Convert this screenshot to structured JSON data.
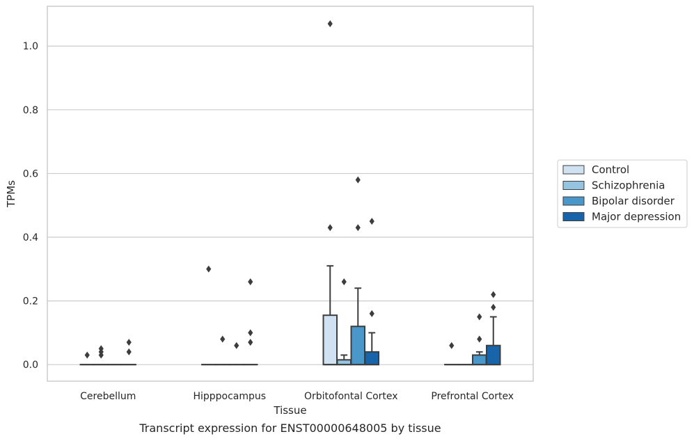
{
  "chart_data": {
    "type": "boxplot",
    "xlabel": "Tissue",
    "ylabel": "TPMs",
    "ylim": [
      -0.052,
      1.125
    ],
    "yticks": [
      0.0,
      0.2,
      0.4,
      0.6,
      0.8,
      1.0
    ],
    "grid": true,
    "legend_position": "right",
    "categories": [
      "Cerebellum",
      "Hipppocampus",
      "Orbitofontal Cortex",
      "Prefrontal Cortex"
    ],
    "series": [
      {
        "name": "Control",
        "color": "#d0e1f2",
        "boxes": [
          {
            "q1": 0,
            "median": 0,
            "q3": 0,
            "whisker_low": 0,
            "whisker_high": 0,
            "outliers": [
              0.03
            ]
          },
          {
            "q1": 0,
            "median": 0,
            "q3": 0,
            "whisker_low": 0,
            "whisker_high": 0,
            "outliers": [
              0.3
            ]
          },
          {
            "q1": 0,
            "median": 0,
            "q3": 0.155,
            "whisker_low": 0,
            "whisker_high": 0.31,
            "outliers": [
              0.43,
              1.07
            ]
          },
          {
            "q1": 0,
            "median": 0,
            "q3": 0,
            "whisker_low": 0,
            "whisker_high": 0,
            "outliers": [
              0.06
            ]
          }
        ]
      },
      {
        "name": "Schizophrenia",
        "color": "#94c4df",
        "boxes": [
          {
            "q1": 0,
            "median": 0,
            "q3": 0,
            "whisker_low": 0,
            "whisker_high": 0,
            "outliers": [
              0.03,
              0.04,
              0.05
            ]
          },
          {
            "q1": 0,
            "median": 0,
            "q3": 0,
            "whisker_low": 0,
            "whisker_high": 0,
            "outliers": [
              0.08
            ]
          },
          {
            "q1": 0,
            "median": 0,
            "q3": 0.015,
            "whisker_low": 0,
            "whisker_high": 0.03,
            "outliers": [
              0.26
            ]
          },
          {
            "q1": 0,
            "median": 0,
            "q3": 0,
            "whisker_low": 0,
            "whisker_high": 0,
            "outliers": []
          }
        ]
      },
      {
        "name": "Bipolar disorder",
        "color": "#4a98c9",
        "boxes": [
          {
            "q1": 0,
            "median": 0,
            "q3": 0,
            "whisker_low": 0,
            "whisker_high": 0,
            "outliers": []
          },
          {
            "q1": 0,
            "median": 0,
            "q3": 0,
            "whisker_low": 0,
            "whisker_high": 0,
            "outliers": [
              0.06
            ]
          },
          {
            "q1": 0,
            "median": 0,
            "q3": 0.12,
            "whisker_low": 0,
            "whisker_high": 0.24,
            "outliers": [
              0.43,
              0.58
            ]
          },
          {
            "q1": 0,
            "median": 0,
            "q3": 0.03,
            "whisker_low": 0,
            "whisker_high": 0.04,
            "outliers": [
              0.08,
              0.15
            ]
          }
        ]
      },
      {
        "name": "Major depression",
        "color": "#1764ab",
        "boxes": [
          {
            "q1": 0,
            "median": 0,
            "q3": 0,
            "whisker_low": 0,
            "whisker_high": 0,
            "outliers": [
              0.04,
              0.07
            ]
          },
          {
            "q1": 0,
            "median": 0,
            "q3": 0,
            "whisker_low": 0,
            "whisker_high": 0,
            "outliers": [
              0.07,
              0.1,
              0.26
            ]
          },
          {
            "q1": 0,
            "median": 0,
            "q3": 0.04,
            "whisker_low": 0,
            "whisker_high": 0.1,
            "outliers": [
              0.16,
              0.45
            ]
          },
          {
            "q1": 0,
            "median": 0,
            "q3": 0.06,
            "whisker_low": 0,
            "whisker_high": 0.15,
            "outliers": [
              0.18,
              0.22
            ]
          }
        ]
      }
    ]
  },
  "caption": "Transcript expression for ENST00000648005 by tissue",
  "colors": {
    "grid": "#cccccc",
    "frame": "#cccccc",
    "line": "#3d3d3d"
  }
}
